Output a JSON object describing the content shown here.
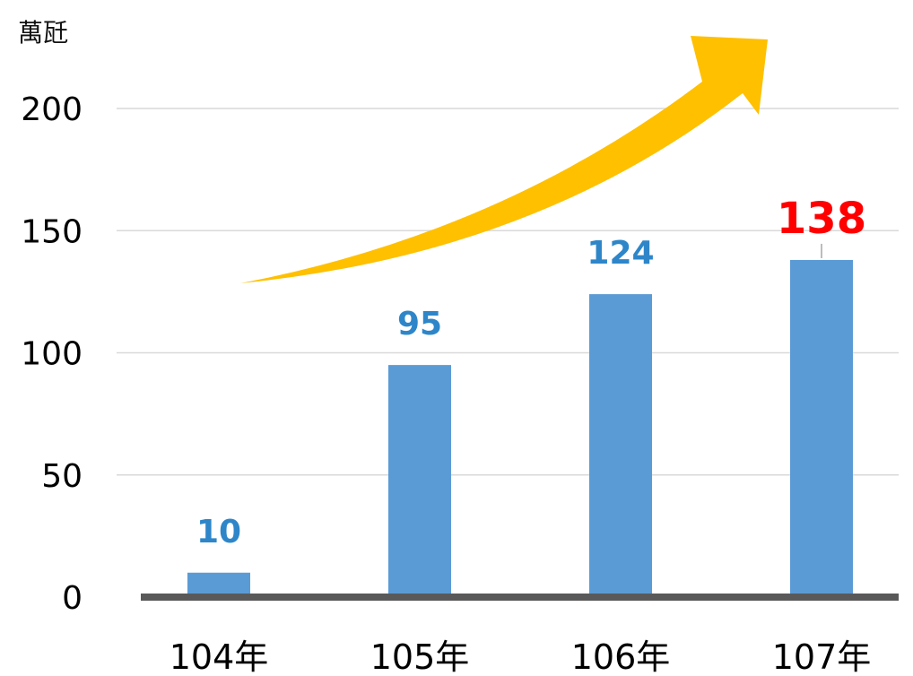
{
  "chart_data": {
    "type": "bar",
    "unit_label": "萬瓩",
    "categories": [
      "104年",
      "105年",
      "106年",
      "107年"
    ],
    "values": [
      10,
      95,
      124,
      138
    ],
    "data_labels": [
      "10",
      "95",
      "124",
      "138"
    ],
    "highlight_index": 3,
    "ylim": [
      0,
      200
    ],
    "yticks": [
      0,
      50,
      100,
      150,
      200
    ],
    "grid": true,
    "legend": "none",
    "title": "",
    "xlabel": "",
    "ylabel": "",
    "colors": {
      "bar": "#5b9bd5",
      "label": "#2e86c9",
      "highlight_label": "#ff0000",
      "axis": "#595959",
      "grid": "#d9d9d9",
      "arrow": "#ffc000"
    },
    "annotations": [
      "trend-arrow-up"
    ]
  }
}
